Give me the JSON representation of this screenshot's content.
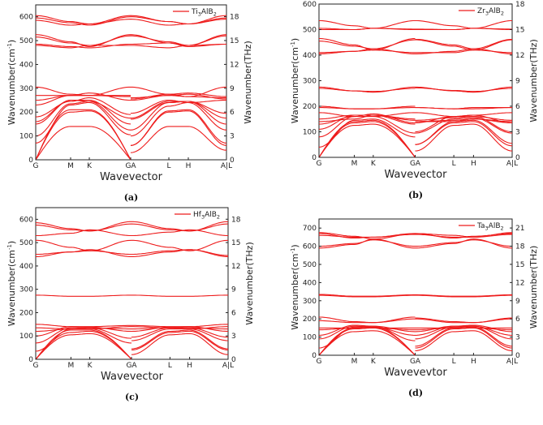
{
  "chart_data": [
    {
      "type": "line",
      "panel_label": "(a)",
      "legend": "Ti3AlB2",
      "legend_position": "top-right",
      "xlabel": "Wavevector",
      "ylabel": "Wavenumber(cm-1)",
      "ylabel_right": "Wavenumber(THz)",
      "xticks": [
        "G",
        "M",
        "K",
        "GA",
        "L",
        "H",
        "A|L"
      ],
      "ylim": [
        0,
        650
      ],
      "yticks": [
        0,
        100,
        200,
        300,
        400,
        500,
        600
      ],
      "yticks_right": [
        0,
        3,
        6,
        9,
        12,
        15,
        18
      ],
      "bands": [
        [
          [
            0,
            140,
            140,
            0
          ],
          [
            30,
            140,
            140,
            40
          ]
        ],
        [
          [
            0,
            200,
            205,
            0
          ],
          [
            60,
            200,
            205,
            60
          ]
        ],
        [
          [
            0,
            210,
            210,
            0
          ],
          [
            60,
            205,
            210,
            70
          ]
        ],
        [
          [
            70,
            230,
            240,
            105
          ],
          [
            100,
            225,
            240,
            125
          ]
        ],
        [
          [
            100,
            235,
            245,
            125
          ],
          [
            125,
            240,
            245,
            150
          ]
        ],
        [
          [
            150,
            250,
            250,
            150
          ],
          [
            170,
            240,
            245,
            175
          ]
        ],
        [
          [
            160,
            250,
            245,
            175
          ],
          [
            175,
            245,
            245,
            195
          ]
        ],
        [
          [
            180,
            245,
            260,
            190
          ],
          [
            195,
            250,
            240,
            250
          ]
        ],
        [
          [
            230,
            270,
            280,
            250
          ],
          [
            250,
            270,
            275,
            255
          ]
        ],
        [
          [
            250,
            270,
            270,
            265
          ],
          [
            260,
            270,
            265,
            260
          ]
        ],
        [
          [
            270,
            270,
            270,
            270
          ],
          [
            255,
            275,
            280,
            265
          ]
        ],
        [
          [
            305,
            275,
            270,
            305
          ],
          [
            305,
            275,
            265,
            305
          ]
        ],
        [
          [
            480,
            470,
            480,
            480
          ],
          [
            480,
            470,
            480,
            485
          ]
        ],
        [
          [
            485,
            475,
            470,
            485
          ],
          [
            485,
            490,
            475,
            485
          ]
        ],
        [
          [
            515,
            490,
            480,
            520
          ],
          [
            520,
            495,
            480,
            520
          ]
        ],
        [
          [
            525,
            495,
            475,
            525
          ],
          [
            525,
            490,
            480,
            525
          ]
        ],
        [
          [
            585,
            565,
            570,
            590
          ],
          [
            590,
            565,
            570,
            590
          ]
        ],
        [
          [
            595,
            575,
            565,
            600
          ],
          [
            600,
            580,
            570,
            595
          ]
        ],
        [
          [
            605,
            580,
            570,
            605
          ],
          [
            605,
            580,
            570,
            605
          ]
        ]
      ]
    },
    {
      "type": "line",
      "panel_label": "(b)",
      "legend": "Zr3AlB2",
      "legend_position": "top-right",
      "xlabel": "Wavevector",
      "ylabel": "Wavenumber(cm-1)",
      "ylabel_right": "Wavenumber(THz)",
      "xticks": [
        "G",
        "M",
        "K",
        "GA",
        "L",
        "H",
        "A|L"
      ],
      "ylim": [
        0,
        600
      ],
      "yticks": [
        0,
        100,
        200,
        300,
        400,
        500,
        600
      ],
      "yticks_right": [
        0,
        3,
        6,
        9,
        12,
        15,
        18
      ],
      "bands": [
        [
          [
            0,
            125,
            130,
            0
          ],
          [
            25,
            125,
            130,
            25
          ]
        ],
        [
          [
            0,
            135,
            140,
            0
          ],
          [
            50,
            135,
            140,
            45
          ]
        ],
        [
          [
            0,
            140,
            145,
            0
          ],
          [
            50,
            140,
            145,
            55
          ]
        ],
        [
          [
            40,
            145,
            150,
            80
          ],
          [
            95,
            150,
            155,
            95
          ]
        ],
        [
          [
            80,
            160,
            160,
            95
          ],
          [
            100,
            160,
            160,
            100
          ]
        ],
        [
          [
            110,
            165,
            165,
            130
          ],
          [
            135,
            160,
            165,
            135
          ]
        ],
        [
          [
            130,
            160,
            170,
            135
          ],
          [
            140,
            145,
            150,
            140
          ]
        ],
        [
          [
            140,
            150,
            165,
            145
          ],
          [
            145,
            155,
            160,
            145
          ]
        ],
        [
          [
            150,
            165,
            165,
            150
          ],
          [
            175,
            160,
            165,
            175
          ]
        ],
        [
          [
            175,
            160,
            160,
            175
          ],
          [
            140,
            140,
            150,
            135
          ]
        ],
        [
          [
            195,
            190,
            190,
            200
          ],
          [
            195,
            190,
            190,
            195
          ]
        ],
        [
          [
            200,
            190,
            190,
            195
          ],
          [
            195,
            190,
            195,
            195
          ]
        ],
        [
          [
            270,
            260,
            255,
            275
          ],
          [
            275,
            260,
            255,
            275
          ]
        ],
        [
          [
            275,
            260,
            258,
            270
          ],
          [
            272,
            262,
            258,
            270
          ]
        ],
        [
          [
            405,
            415,
            425,
            405
          ],
          [
            405,
            415,
            425,
            405
          ]
        ],
        [
          [
            410,
            415,
            420,
            410
          ],
          [
            410,
            410,
            420,
            410
          ]
        ],
        [
          [
            455,
            435,
            425,
            460
          ],
          [
            460,
            435,
            420,
            460
          ]
        ],
        [
          [
            465,
            440,
            420,
            465
          ],
          [
            462,
            440,
            425,
            462
          ]
        ],
        [
          [
            500,
            500,
            505,
            500
          ],
          [
            500,
            500,
            505,
            500
          ]
        ],
        [
          [
            505,
            500,
            505,
            502
          ],
          [
            502,
            500,
            505,
            502
          ]
        ],
        [
          [
            535,
            515,
            505,
            535
          ],
          [
            535,
            515,
            505,
            535
          ]
        ]
      ]
    },
    {
      "type": "line",
      "panel_label": "(c)",
      "legend": "Hf3AlB2",
      "legend_position": "top-right",
      "xlabel": "Wavevector",
      "ylabel": "Wavenumber(cm-1)",
      "ylabel_right": "Wavenumber(THz)",
      "xticks": [
        "G",
        "M",
        "K",
        "GA",
        "L",
        "H",
        "A|L"
      ],
      "ylim": [
        0,
        650
      ],
      "yticks": [
        0,
        100,
        200,
        300,
        400,
        500,
        600
      ],
      "yticks_right": [
        0,
        3,
        6,
        9,
        12,
        15,
        18
      ],
      "bands": [
        [
          [
            0,
            105,
            110,
            0
          ],
          [
            20,
            105,
            110,
            20
          ]
        ],
        [
          [
            0,
            115,
            120,
            0
          ],
          [
            40,
            115,
            120,
            40
          ]
        ],
        [
          [
            0,
            125,
            125,
            0
          ],
          [
            45,
            120,
            125,
            45
          ]
        ],
        [
          [
            35,
            130,
            130,
            70
          ],
          [
            80,
            130,
            130,
            80
          ]
        ],
        [
          [
            70,
            135,
            135,
            90
          ],
          [
            95,
            135,
            135,
            95
          ]
        ],
        [
          [
            100,
            140,
            138,
            120
          ],
          [
            120,
            138,
            140,
            120
          ]
        ],
        [
          [
            120,
            130,
            135,
            130
          ],
          [
            130,
            135,
            135,
            130
          ]
        ],
        [
          [
            135,
            130,
            130,
            140
          ],
          [
            140,
            135,
            130,
            140
          ]
        ],
        [
          [
            150,
            140,
            140,
            145
          ],
          [
            145,
            140,
            140,
            150
          ]
        ],
        [
          [
            275,
            270,
            270,
            275
          ],
          [
            275,
            270,
            270,
            275
          ]
        ],
        [
          [
            440,
            460,
            470,
            440
          ],
          [
            440,
            460,
            470,
            440
          ]
        ],
        [
          [
            450,
            460,
            465,
            450
          ],
          [
            450,
            465,
            470,
            445
          ]
        ],
        [
          [
            510,
            480,
            465,
            510
          ],
          [
            510,
            480,
            465,
            510
          ]
        ],
        [
          [
            530,
            540,
            555,
            530
          ],
          [
            530,
            545,
            555,
            530
          ]
        ],
        [
          [
            575,
            555,
            550,
            580
          ],
          [
            580,
            555,
            550,
            580
          ]
        ],
        [
          [
            585,
            560,
            550,
            590
          ],
          [
            590,
            560,
            550,
            590
          ]
        ]
      ]
    },
    {
      "type": "line",
      "panel_label": "(d)",
      "legend": "Ta3AlB2",
      "legend_position": "top-right",
      "xlabel": "Wavevevtor",
      "ylabel": "Wavenumber(cm-1)",
      "ylabel_right": "Wavenumber(THz)",
      "xticks": [
        "G",
        "M",
        "K",
        "GA",
        "L",
        "H",
        "A|L"
      ],
      "ylim": [
        0,
        750
      ],
      "yticks": [
        0,
        100,
        200,
        300,
        400,
        500,
        600,
        700
      ],
      "yticks_right": [
        0,
        3,
        6,
        9,
        12,
        15,
        18,
        21
      ],
      "bands": [
        [
          [
            0,
            130,
            135,
            0
          ],
          [
            25,
            130,
            135,
            25
          ]
        ],
        [
          [
            0,
            145,
            150,
            0
          ],
          [
            40,
            145,
            150,
            40
          ]
        ],
        [
          [
            0,
            150,
            155,
            0
          ],
          [
            50,
            150,
            155,
            50
          ]
        ],
        [
          [
            40,
            155,
            160,
            80
          ],
          [
            90,
            155,
            160,
            90
          ]
        ],
        [
          [
            90,
            160,
            155,
            110
          ],
          [
            110,
            160,
            160,
            110
          ]
        ],
        [
          [
            110,
            165,
            160,
            130
          ],
          [
            130,
            160,
            165,
            130
          ]
        ],
        [
          [
            140,
            150,
            150,
            140
          ],
          [
            140,
            150,
            150,
            140
          ]
        ],
        [
          [
            150,
            150,
            150,
            150
          ],
          [
            150,
            150,
            150,
            150
          ]
        ],
        [
          [
            190,
            180,
            180,
            200
          ],
          [
            200,
            180,
            180,
            200
          ]
        ],
        [
          [
            210,
            185,
            180,
            210
          ],
          [
            205,
            185,
            180,
            205
          ]
        ],
        [
          [
            330,
            322,
            322,
            330
          ],
          [
            330,
            322,
            322,
            330
          ]
        ],
        [
          [
            335,
            325,
            325,
            333
          ],
          [
            333,
            325,
            325,
            333
          ]
        ],
        [
          [
            590,
            610,
            640,
            590
          ],
          [
            590,
            615,
            640,
            590
          ]
        ],
        [
          [
            600,
            615,
            635,
            600
          ],
          [
            600,
            620,
            635,
            600
          ]
        ],
        [
          [
            660,
            650,
            650,
            665
          ],
          [
            665,
            650,
            650,
            665
          ]
        ],
        [
          [
            670,
            645,
            650,
            670
          ],
          [
            670,
            645,
            655,
            670
          ]
        ],
        [
          [
            675,
            655,
            640,
            670
          ],
          [
            670,
            660,
            650,
            675
          ]
        ]
      ]
    }
  ]
}
